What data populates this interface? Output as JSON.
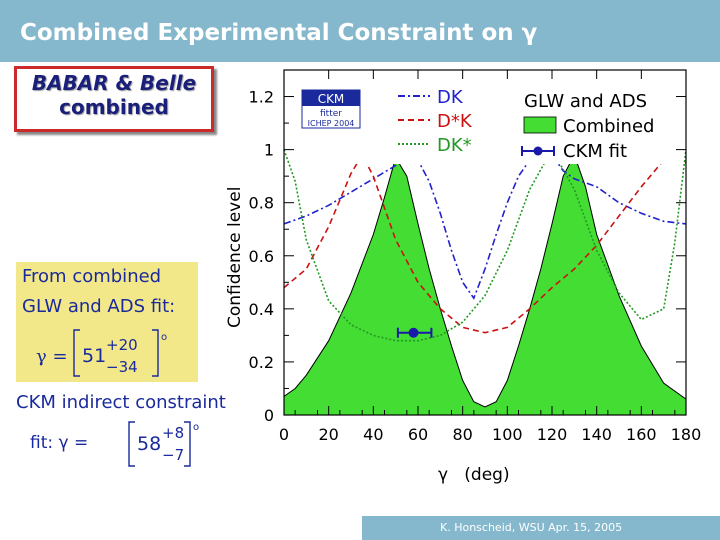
{
  "slide": {
    "title": "Combined Experimental Constraint on γ",
    "footer": "K. Honscheid, WSU Apr. 15, 2005"
  },
  "left_panel": {
    "combined_line1": "BABAR & Belle",
    "combined_line2": "combined",
    "fit_line1": "From combined",
    "fit_line2": "GLW and ADS fit:",
    "fit_value": "51",
    "fit_plus": "+20",
    "fit_minus": "−34",
    "fit_symbol": "γ =",
    "fit_degree": "o",
    "ckm_line": "CKM indirect constraint",
    "ckm_fit_prefix": "fit: γ =",
    "ckm_value": "58",
    "ckm_plus": "+8",
    "ckm_minus": "−7",
    "ckm_degree": "o"
  },
  "logo": {
    "line1": "CKM",
    "line2": "fitter",
    "line3": "ICHEP 2004"
  },
  "colors": {
    "title_bar": "#86b8cd",
    "combined_fill": "#44dd33",
    "dk": "#2222cc",
    "dstark": "#cc1111",
    "dkstar": "#229922",
    "ckm_fit": "#1a1aaa",
    "fit_box": "#f2e889",
    "text_blue": "#1a2a9c"
  },
  "chart_data": {
    "type": "line",
    "xlabel": "γ   (deg)",
    "ylabel": "Confidence level",
    "xlim": [
      0,
      180
    ],
    "ylim": [
      0,
      1.3
    ],
    "x_ticks": [
      0,
      20,
      40,
      60,
      80,
      100,
      120,
      140,
      160,
      180
    ],
    "y_ticks": [
      0,
      0.2,
      0.4,
      0.6,
      0.8,
      1,
      1.2
    ],
    "grid": false,
    "legend_position": "top",
    "legend_title": "GLW and ADS",
    "series": [
      {
        "name": "DK",
        "style": "dashdot",
        "x": [
          0,
          10,
          20,
          30,
          40,
          50,
          55,
          60,
          65,
          70,
          75,
          80,
          85,
          90,
          95,
          100,
          105,
          110,
          115,
          120,
          125,
          130,
          140,
          150,
          160,
          170,
          180
        ],
        "y": [
          0.72,
          0.75,
          0.79,
          0.84,
          0.89,
          0.94,
          0.98,
          0.96,
          0.88,
          0.76,
          0.62,
          0.5,
          0.44,
          0.55,
          0.68,
          0.8,
          0.9,
          0.96,
          0.99,
          0.98,
          0.92,
          0.89,
          0.86,
          0.8,
          0.76,
          0.73,
          0.72
        ]
      },
      {
        "name": "D*K",
        "style": "dashed",
        "x": [
          0,
          10,
          20,
          30,
          35,
          40,
          50,
          60,
          70,
          80,
          90,
          100,
          110,
          120,
          130,
          140,
          150,
          160,
          170,
          175,
          180
        ],
        "y": [
          0.48,
          0.55,
          0.71,
          0.91,
          0.98,
          0.9,
          0.66,
          0.5,
          0.4,
          0.33,
          0.31,
          0.33,
          0.4,
          0.48,
          0.55,
          0.64,
          0.75,
          0.86,
          0.96,
          0.98,
          0.95
        ]
      },
      {
        "name": "DK*",
        "style": "dotted",
        "x": [
          0,
          5,
          10,
          20,
          30,
          40,
          50,
          60,
          70,
          80,
          90,
          100,
          110,
          120,
          130,
          140,
          150,
          160,
          170,
          175,
          180
        ],
        "y": [
          1.0,
          0.88,
          0.66,
          0.43,
          0.34,
          0.3,
          0.28,
          0.28,
          0.3,
          0.35,
          0.45,
          0.62,
          0.85,
          1.0,
          0.85,
          0.62,
          0.46,
          0.36,
          0.4,
          0.65,
          1.0
        ]
      },
      {
        "name": "Combined",
        "style": "area",
        "x": [
          0,
          5,
          10,
          20,
          30,
          40,
          45,
          50,
          55,
          60,
          65,
          70,
          75,
          80,
          85,
          90,
          95,
          100,
          105,
          110,
          115,
          120,
          125,
          130,
          135,
          140,
          150,
          160,
          170,
          180
        ],
        "y": [
          0.07,
          0.1,
          0.15,
          0.28,
          0.46,
          0.68,
          0.82,
          0.97,
          0.9,
          0.72,
          0.55,
          0.4,
          0.26,
          0.13,
          0.05,
          0.03,
          0.05,
          0.13,
          0.26,
          0.4,
          0.55,
          0.72,
          0.9,
          0.98,
          0.86,
          0.68,
          0.45,
          0.26,
          0.12,
          0.06
        ]
      }
    ],
    "ckm_point": {
      "name": "CKM fit",
      "x": 58,
      "y": 0.31,
      "xerr_low": 7,
      "xerr_high": 8
    }
  }
}
